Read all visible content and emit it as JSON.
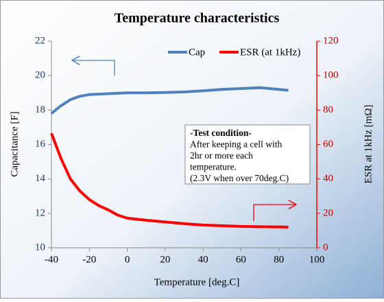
{
  "chart_data": {
    "type": "line",
    "title": "Temperature characteristics",
    "xlabel": "Temperature [deg.C]",
    "ylabel": "Capacitance [F]",
    "y2label": "ESR at 1kHz [mΩ]",
    "xlim": [
      -40,
      100
    ],
    "xticks": [
      -40,
      -20,
      0,
      20,
      40,
      60,
      80,
      100
    ],
    "ylim": [
      10,
      22
    ],
    "yticks": [
      10,
      12,
      14,
      16,
      18,
      20,
      22
    ],
    "y2lim": [
      0,
      120
    ],
    "y2ticks": [
      0,
      20,
      40,
      60,
      80,
      100,
      120
    ],
    "legend": "upper right",
    "series": [
      {
        "name": "Cap",
        "color": "#4f81bd",
        "axis": "y",
        "x": [
          -40,
          -35,
          -30,
          -25,
          -20,
          -10,
          0,
          10,
          20,
          30,
          40,
          50,
          60,
          70,
          80,
          85
        ],
        "values": [
          17.8,
          18.25,
          18.6,
          18.8,
          18.9,
          18.95,
          19.0,
          19.0,
          19.02,
          19.05,
          19.12,
          19.2,
          19.25,
          19.3,
          19.2,
          19.15
        ]
      },
      {
        "name": "ESR (at 1kHz)",
        "color": "#ff0000",
        "axis": "y2",
        "x": [
          -40,
          -35,
          -30,
          -25,
          -20,
          -15,
          -10,
          -5,
          0,
          10,
          20,
          30,
          40,
          50,
          60,
          70,
          80,
          85
        ],
        "values": [
          66.5,
          52,
          40,
          33,
          28,
          24.5,
          22,
          19,
          17.2,
          16,
          15,
          14,
          13.2,
          12.8,
          12.4,
          12.2,
          12.1,
          12
        ]
      }
    ],
    "annotation": [
      "-Test condition-",
      "After keeping a cell with",
      "2hr or more each",
      "temperature.",
      "(2.3V when over 70deg.C)"
    ]
  }
}
